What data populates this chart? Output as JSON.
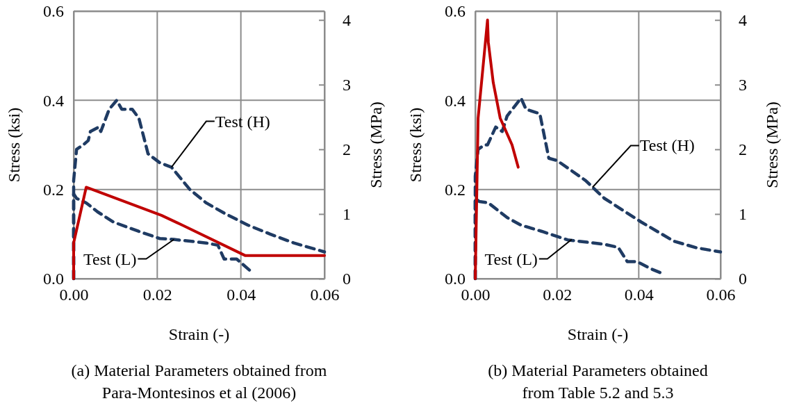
{
  "chart_data": [
    {
      "type": "line",
      "xlabel": "Strain (-)",
      "ylabel": "Stress (ksi)",
      "y2label": "Stress (MPa)",
      "xlim": [
        0,
        0.06
      ],
      "xticks": [
        {
          "value": 0,
          "label": "0.00"
        },
        {
          "value": 0.02,
          "label": "0.02"
        },
        {
          "value": 0.04,
          "label": "0.04"
        },
        {
          "value": 0.06,
          "label": "0.06"
        }
      ],
      "ylim": [
        0,
        0.6
      ],
      "yticks": [
        {
          "value": 0,
          "label": "0.0"
        },
        {
          "value": 0.2,
          "label": "0.2"
        },
        {
          "value": 0.4,
          "label": "0.4"
        },
        {
          "value": 0.6,
          "label": "0.6"
        }
      ],
      "y2lim": [
        0,
        4.137
      ],
      "y2ticks": [
        0,
        1,
        2,
        3,
        4
      ],
      "grid": true,
      "marker": "none",
      "series": [
        {
          "color": "#1f3b63",
          "line_style": "dashed",
          "x": [
            0,
            0,
            0.0007,
            0.0023,
            0.0035,
            0.004,
            0.006,
            0.0065,
            0.0085,
            0.0103,
            0.0115,
            0.014,
            0.0156,
            0.0178,
            0.0206,
            0.0234,
            0.0278,
            0.0317,
            0.036,
            0.0417,
            0.047,
            0.0527,
            0.06
          ],
          "values": [
            0,
            0.22,
            0.29,
            0.3,
            0.31,
            0.33,
            0.34,
            0.33,
            0.38,
            0.4,
            0.38,
            0.38,
            0.36,
            0.28,
            0.26,
            0.25,
            0.2,
            0.17,
            0.147,
            0.12,
            0.1,
            0.08,
            0.06
          ]
        },
        {
          "color": "#1f3b63",
          "line_style": "dashed",
          "x": [
            0,
            0,
            0.0007,
            0.003,
            0.0057,
            0.0095,
            0.0156,
            0.0206,
            0.024,
            0.0317,
            0.0345,
            0.036,
            0.039,
            0.0427
          ],
          "values": [
            0,
            0.19,
            0.18,
            0.17,
            0.15,
            0.127,
            0.106,
            0.09,
            0.088,
            0.08,
            0.075,
            0.044,
            0.044,
            0.014
          ]
        },
        {
          "color": "#c00000",
          "line_style": "solid",
          "x": [
            0,
            0,
            0.003,
            0.021,
            0.026,
            0.041,
            0.06
          ],
          "values": [
            0,
            0.08,
            0.205,
            0.142,
            0.12,
            0.052,
            0.052
          ]
        }
      ],
      "annotations": [
        {
          "text": "Test (H)",
          "x": 0.0234,
          "y": 0.25
        },
        {
          "text": "Test (L)",
          "x": 0.024,
          "y": 0.088
        },
        "(a) Material Parameters obtained from\nPara-Montesinos et al (2006)"
      ]
    },
    {
      "type": "line",
      "xlabel": "Strain (-)",
      "ylabel": "Stress (ksi)",
      "y2label": "Stress (MPa)",
      "xlim": [
        0,
        0.06
      ],
      "xticks": [
        {
          "value": 0,
          "label": "0.00"
        },
        {
          "value": 0.02,
          "label": "0.02"
        },
        {
          "value": 0.04,
          "label": "0.04"
        },
        {
          "value": 0.06,
          "label": "0.06"
        }
      ],
      "ylim": [
        0,
        0.6
      ],
      "yticks": [
        {
          "value": 0,
          "label": "0.0"
        },
        {
          "value": 0.2,
          "label": "0.2"
        },
        {
          "value": 0.4,
          "label": "0.4"
        },
        {
          "value": 0.6,
          "label": "0.6"
        }
      ],
      "y2lim": [
        0,
        4.137
      ],
      "y2ticks": [
        0,
        1,
        2,
        3,
        4
      ],
      "grid": true,
      "marker": "none",
      "series": [
        {
          "color": "#1f3b63",
          "line_style": "dashed",
          "x": [
            0,
            0,
            0.0007,
            0.0022,
            0.003,
            0.005,
            0.0066,
            0.0078,
            0.0112,
            0.0124,
            0.0158,
            0.018,
            0.02,
            0.027,
            0.0316,
            0.0406,
            0.0486,
            0.0542,
            0.06
          ],
          "values": [
            0,
            0.23,
            0.29,
            0.3,
            0.3,
            0.34,
            0.33,
            0.365,
            0.405,
            0.38,
            0.37,
            0.27,
            0.265,
            0.22,
            0.18,
            0.127,
            0.084,
            0.069,
            0.06
          ]
        },
        {
          "color": "#1f3b63",
          "line_style": "dashed",
          "x": [
            0,
            0,
            0.001,
            0.0032,
            0.0078,
            0.0112,
            0.0163,
            0.0226,
            0.0316,
            0.035,
            0.0372,
            0.0396,
            0.043,
            0.0457
          ],
          "values": [
            0,
            0.18,
            0.173,
            0.17,
            0.137,
            0.12,
            0.106,
            0.087,
            0.077,
            0.07,
            0.038,
            0.038,
            0.022,
            0.012
          ]
        },
        {
          "color": "#c00000",
          "line_style": "solid",
          "x": [
            0,
            0.0007,
            0.003,
            0.0032,
            0.0044,
            0.0061,
            0.009,
            0.0105
          ],
          "values": [
            0,
            0.36,
            0.58,
            0.53,
            0.44,
            0.36,
            0.3,
            0.25
          ]
        }
      ],
      "annotations": [
        {
          "text": "Test (H)",
          "x": 0.0287,
          "y": 0.205
        },
        {
          "text": "Test (L)",
          "x": 0.0236,
          "y": 0.088
        },
        "(b) Material Parameters obtained\nfrom Table 5.2 and 5.3"
      ]
    }
  ]
}
